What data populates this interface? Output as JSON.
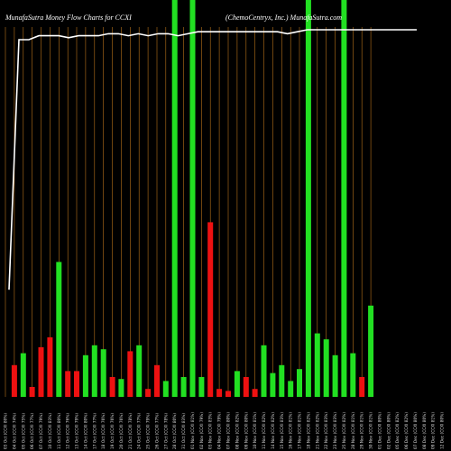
{
  "chart_data": {
    "type": "bar",
    "title_left": "MunafaSutra  Money Flow  Charts for CCXI",
    "title_right": "(ChemoCentryx, Inc.) MunafaSutra.com",
    "ylim": [
      0,
      100
    ],
    "colors": {
      "up": "#22e022",
      "down": "#ee1111",
      "line": "#ffffff",
      "grid": "#b8721a",
      "background": "#000000"
    },
    "grid": true,
    "categories": [
      "03 Oct (CCXI 80%)",
      "04 Oct (CCXI 74%)",
      "05 Oct (CCXI 75%)",
      "06 Oct (CCXI 77%)",
      "07 Oct (CCXI 79%)",
      "10 Oct (CCXI 83%)",
      "11 Oct (CCXI 80%)",
      "12 Oct (CCXI 76%)",
      "13 Oct (CCXI 79%)",
      "14 Oct (CCXI 80%)",
      "17 Oct (CCXI 77%)",
      "18 Oct (CCXI 76%)",
      "19 Oct (CCXI 76%)",
      "20 Oct (CCXI 76%)",
      "21 Oct (CCXI 78%)",
      "24 Oct (CCXI 77%)",
      "25 Oct (CCXI 79%)",
      "26 Oct (CCXI 77%)",
      "27 Oct (CCXI 78%)",
      "28 Oct (CCXI 80%)",
      "31 Oct (CCXI 83%)",
      "01 Nov (CCXI 81%)",
      "02 Nov (CCXI 79%)",
      "03 Nov (CCXI 83%)",
      "04 Nov (CCXI 79%)",
      "07 Nov (CCXI 80%)",
      "08 Nov (CCXI 82%)",
      "09 Nov (CCXI 80%)",
      "10 Nov (CCXI 81%)",
      "11 Nov (CCXI 82%)",
      "14 Nov (CCXI 82%)",
      "15 Nov (CCXI 83%)",
      "16 Nov (CCXI 81%)",
      "17 Nov (CCXI 81%)",
      "18 Nov (CCXI 82%)",
      "21 Nov (CCXI 82%)",
      "22 Nov (CCXI 83%)",
      "23 Nov (CCXI 83%)",
      "25 Nov (CCXI 82%)",
      "28 Nov (CCXI 81%)",
      "29 Nov (CCXI 81%)",
      "30 Nov (CCXI 81%)",
      "01 Dec (CCXI 80%)",
      "02 Dec (CCXI 80%)",
      "05 Dec (CCXI 82%)",
      "06 Dec (CCXI 82%)",
      "07 Dec (CCXI 80%)",
      "08 Dec (CCXI 80%)",
      "09 Dec (CCXI 81%)",
      "12 Dec (CCXI 80%)"
    ],
    "bars": [
      {
        "v": 8,
        "c": "down"
      },
      {
        "v": 11,
        "c": "up"
      },
      {
        "v": 2.5,
        "c": "down"
      },
      {
        "v": 12.5,
        "c": "down"
      },
      {
        "v": 15,
        "c": "down"
      },
      {
        "v": 34,
        "c": "up"
      },
      {
        "v": 6.5,
        "c": "down"
      },
      {
        "v": 6.5,
        "c": "down"
      },
      {
        "v": 10.5,
        "c": "up"
      },
      {
        "v": 13,
        "c": "up"
      },
      {
        "v": 12,
        "c": "up"
      },
      {
        "v": 5,
        "c": "down"
      },
      {
        "v": 4.5,
        "c": "up"
      },
      {
        "v": 11.5,
        "c": "down"
      },
      {
        "v": 13,
        "c": "up"
      },
      {
        "v": 2,
        "c": "down"
      },
      {
        "v": 8,
        "c": "down"
      },
      {
        "v": 4,
        "c": "up"
      },
      {
        "v": 100,
        "c": "up"
      },
      {
        "v": 5,
        "c": "up"
      },
      {
        "v": 100,
        "c": "up"
      },
      {
        "v": 5,
        "c": "up"
      },
      {
        "v": 44,
        "c": "down"
      },
      {
        "v": 2,
        "c": "down"
      },
      {
        "v": 1.5,
        "c": "down"
      },
      {
        "v": 6.5,
        "c": "up"
      },
      {
        "v": 5,
        "c": "down"
      },
      {
        "v": 2,
        "c": "down"
      },
      {
        "v": 13,
        "c": "up"
      },
      {
        "v": 6,
        "c": "up"
      },
      {
        "v": 8,
        "c": "up"
      },
      {
        "v": 4,
        "c": "up"
      },
      {
        "v": 7,
        "c": "up"
      },
      {
        "v": 100,
        "c": "up"
      },
      {
        "v": 16,
        "c": "up"
      },
      {
        "v": 14.5,
        "c": "up"
      },
      {
        "v": 10.5,
        "c": "up"
      },
      {
        "v": 100,
        "c": "up"
      },
      {
        "v": 11,
        "c": "up"
      },
      {
        "v": 5,
        "c": "down"
      },
      {
        "v": 23,
        "c": "up"
      }
    ],
    "bar_slots": [
      1,
      2,
      3,
      4,
      5,
      6,
      7,
      8,
      9,
      10,
      11,
      12,
      13,
      14,
      15,
      16,
      17,
      18,
      19,
      20,
      21,
      22,
      23,
      24,
      25,
      26,
      27,
      28,
      29,
      30,
      31,
      32,
      33,
      34,
      35,
      36,
      37,
      38,
      39,
      40,
      41
    ],
    "line": [
      27,
      90,
      90,
      91,
      91,
      91,
      90.5,
      91,
      91,
      91,
      91.5,
      91.5,
      91,
      91.5,
      91,
      91.5,
      91.5,
      91,
      91.5,
      92,
      92,
      92,
      92,
      92,
      92,
      92,
      92,
      92,
      91.5,
      92,
      92.5,
      92.5,
      92.5,
      92.5,
      92.5,
      92.5,
      92.5,
      92.5,
      92.5,
      92.5,
      92.5,
      92.5
    ]
  }
}
